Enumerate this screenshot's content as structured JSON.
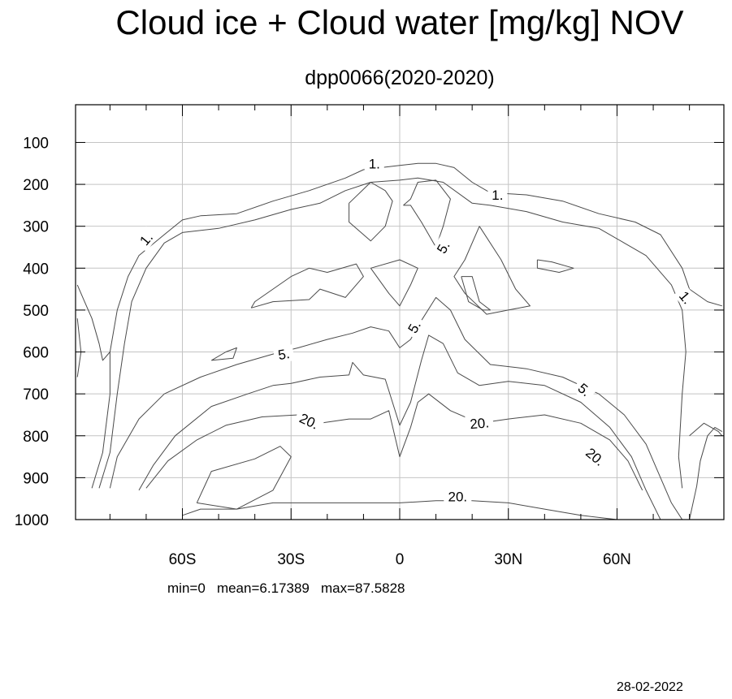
{
  "chart_data": {
    "type": "contour",
    "title": "Cloud ice + Cloud water [mg/kg] NOV",
    "subtitle": "dpp0066(2020-2020)",
    "x_ticks": [
      {
        "value": -60,
        "label": "60S"
      },
      {
        "value": -30,
        "label": "30S"
      },
      {
        "value": 0,
        "label": "0"
      },
      {
        "value": 30,
        "label": "30N"
      },
      {
        "value": 60,
        "label": "60N"
      }
    ],
    "y_ticks": [
      {
        "value": 100,
        "label": "100"
      },
      {
        "value": 200,
        "label": "200"
      },
      {
        "value": 300,
        "label": "300"
      },
      {
        "value": 400,
        "label": "400"
      },
      {
        "value": 500,
        "label": "500"
      },
      {
        "value": 600,
        "label": "600"
      },
      {
        "value": 700,
        "label": "700"
      },
      {
        "value": 800,
        "label": "800"
      },
      {
        "value": 900,
        "label": "900"
      },
      {
        "value": 1000,
        "label": "1000"
      }
    ],
    "xlim": [
      -89.5,
      89.5
    ],
    "ylim": [
      1000,
      10
    ],
    "grid": true,
    "contour_levels": [
      1,
      5,
      20
    ],
    "contours": [
      {
        "level": 1,
        "points": [
          [
            -85,
            925
          ],
          [
            -82,
            840
          ],
          [
            -80,
            700
          ],
          [
            -80,
            600
          ],
          [
            -78,
            500
          ],
          [
            -75,
            420
          ],
          [
            -72,
            370
          ],
          [
            -65,
            320
          ],
          [
            -60,
            285
          ],
          [
            -55,
            275
          ],
          [
            -45,
            270
          ],
          [
            -35,
            240
          ],
          [
            -25,
            215
          ],
          [
            -15,
            185
          ],
          [
            -10,
            165
          ],
          [
            -5,
            160
          ],
          [
            0,
            155
          ],
          [
            5,
            150
          ],
          [
            10,
            150
          ],
          [
            15,
            160
          ],
          [
            20,
            195
          ],
          [
            25,
            220
          ],
          [
            35,
            225
          ],
          [
            45,
            240
          ],
          [
            55,
            270
          ],
          [
            65,
            290
          ],
          [
            72,
            320
          ],
          [
            78,
            400
          ],
          [
            80,
            450
          ],
          [
            85,
            480
          ],
          [
            89,
            490
          ]
        ]
      },
      {
        "level": 1,
        "points": [
          [
            -83,
            925
          ],
          [
            -80,
            840
          ],
          [
            -78,
            700
          ],
          [
            -76,
            580
          ],
          [
            -74,
            480
          ],
          [
            -70,
            400
          ],
          [
            -65,
            340
          ],
          [
            -60,
            315
          ],
          [
            -50,
            305
          ],
          [
            -40,
            285
          ],
          [
            -30,
            260
          ],
          [
            -22,
            245
          ],
          [
            -15,
            215
          ],
          [
            -8,
            195
          ],
          [
            0,
            190
          ],
          [
            5,
            185
          ],
          [
            12,
            195
          ],
          [
            20,
            245
          ],
          [
            25,
            250
          ],
          [
            35,
            265
          ],
          [
            45,
            290
          ],
          [
            55,
            305
          ],
          [
            62,
            340
          ],
          [
            68,
            370
          ],
          [
            75,
            440
          ],
          [
            78,
            500
          ],
          [
            79,
            600
          ],
          [
            78,
            700
          ],
          [
            77,
            850
          ],
          [
            78,
            925
          ]
        ]
      },
      {
        "level": 5,
        "points": [
          [
            -80,
            925
          ],
          [
            -78,
            850
          ],
          [
            -72,
            760
          ],
          [
            -65,
            700
          ],
          [
            -55,
            660
          ],
          [
            -45,
            630
          ],
          [
            -35,
            605
          ],
          [
            -28,
            590
          ],
          [
            -20,
            570
          ],
          [
            -13,
            555
          ],
          [
            -8,
            540
          ],
          [
            -3,
            550
          ],
          [
            0,
            590
          ],
          [
            3,
            570
          ],
          [
            6,
            525
          ],
          [
            10,
            470
          ],
          [
            14,
            500
          ],
          [
            18,
            570
          ],
          [
            25,
            630
          ],
          [
            35,
            640
          ],
          [
            45,
            660
          ],
          [
            55,
            700
          ],
          [
            62,
            750
          ],
          [
            68,
            820
          ],
          [
            72,
            900
          ],
          [
            75,
            960
          ],
          [
            78,
            1000
          ]
        ]
      },
      {
        "level": 5,
        "points": [
          [
            -72,
            930
          ],
          [
            -68,
            870
          ],
          [
            -62,
            800
          ],
          [
            -52,
            730
          ],
          [
            -42,
            700
          ],
          [
            -35,
            680
          ],
          [
            -30,
            675
          ],
          [
            -22,
            660
          ],
          [
            -14,
            655
          ],
          [
            -13,
            625
          ],
          [
            -10,
            655
          ],
          [
            -4,
            665
          ],
          [
            0,
            775
          ],
          [
            3,
            720
          ],
          [
            6,
            620
          ],
          [
            8,
            560
          ],
          [
            12,
            580
          ],
          [
            16,
            650
          ],
          [
            22,
            680
          ],
          [
            30,
            670
          ],
          [
            40,
            680
          ],
          [
            50,
            720
          ],
          [
            58,
            780
          ],
          [
            64,
            850
          ],
          [
            68,
            930
          ],
          [
            72,
            1000
          ]
        ]
      },
      {
        "level": 20,
        "points": [
          [
            -70,
            925
          ],
          [
            -64,
            860
          ],
          [
            -56,
            810
          ],
          [
            -48,
            775
          ],
          [
            -38,
            755
          ],
          [
            -28,
            750
          ],
          [
            -22,
            770
          ],
          [
            -14,
            760
          ],
          [
            -8,
            760
          ],
          [
            -3,
            740
          ],
          [
            0,
            850
          ],
          [
            3,
            780
          ],
          [
            5,
            720
          ],
          [
            8,
            700
          ],
          [
            14,
            740
          ],
          [
            22,
            770
          ],
          [
            30,
            760
          ],
          [
            40,
            750
          ],
          [
            50,
            770
          ],
          [
            58,
            810
          ],
          [
            63,
            860
          ],
          [
            67,
            930
          ]
        ]
      },
      {
        "level": 20,
        "points": [
          [
            -60,
            990
          ],
          [
            -55,
            975
          ],
          [
            -45,
            975
          ],
          [
            -35,
            960
          ],
          [
            -20,
            960
          ],
          [
            -10,
            960
          ],
          [
            0,
            960
          ],
          [
            10,
            955
          ],
          [
            20,
            955
          ],
          [
            30,
            960
          ],
          [
            40,
            975
          ],
          [
            50,
            990
          ],
          [
            60,
            1000
          ]
        ]
      },
      {
        "level": 20,
        "points": [
          [
            -56,
            960
          ],
          [
            -52,
            885
          ],
          [
            -40,
            855
          ],
          [
            -33,
            825
          ],
          [
            -30,
            850
          ],
          [
            -35,
            930
          ],
          [
            -45,
            975
          ],
          [
            -56,
            960
          ]
        ]
      },
      {
        "level": 5,
        "points": [
          [
            -14,
            245
          ],
          [
            -8,
            195
          ],
          [
            -4,
            215
          ],
          [
            -2,
            240
          ],
          [
            -4,
            300
          ],
          [
            -8,
            335
          ],
          [
            -14,
            290
          ],
          [
            -14,
            245
          ]
        ]
      },
      {
        "level": 5,
        "points": [
          [
            1,
            250
          ],
          [
            3,
            235
          ],
          [
            5,
            195
          ],
          [
            10,
            190
          ],
          [
            14,
            235
          ],
          [
            12,
            300
          ],
          [
            10,
            350
          ],
          [
            6,
            290
          ],
          [
            3,
            250
          ],
          [
            1,
            250
          ]
        ]
      },
      {
        "level": 5,
        "points": [
          [
            22,
            300
          ],
          [
            28,
            380
          ],
          [
            32,
            450
          ],
          [
            36,
            490
          ],
          [
            30,
            500
          ],
          [
            24,
            510
          ],
          [
            18,
            460
          ],
          [
            15,
            420
          ],
          [
            18,
            380
          ],
          [
            22,
            300
          ]
        ]
      },
      {
        "level": 5,
        "points": [
          [
            17,
            420
          ],
          [
            20,
            420
          ],
          [
            22,
            480
          ],
          [
            25,
            500
          ],
          [
            23,
            500
          ],
          [
            19,
            480
          ],
          [
            17,
            420
          ]
        ]
      },
      {
        "level": 5,
        "points": [
          [
            -41,
            495
          ],
          [
            -35,
            480
          ],
          [
            -25,
            475
          ],
          [
            -22,
            450
          ],
          [
            -15,
            470
          ],
          [
            -10,
            420
          ],
          [
            -12,
            390
          ],
          [
            -20,
            410
          ],
          [
            -25,
            400
          ],
          [
            -30,
            420
          ],
          [
            -40,
            480
          ],
          [
            -41,
            495
          ]
        ]
      },
      {
        "level": 5,
        "points": [
          [
            -8,
            400
          ],
          [
            0,
            380
          ],
          [
            5,
            400
          ],
          [
            3,
            440
          ],
          [
            0,
            490
          ],
          [
            -3,
            460
          ],
          [
            -8,
            400
          ]
        ]
      },
      {
        "level": 5,
        "points": [
          [
            38,
            380
          ],
          [
            42,
            385
          ],
          [
            48,
            400
          ],
          [
            44,
            410
          ],
          [
            38,
            400
          ],
          [
            38,
            380
          ]
        ]
      },
      {
        "level": 1,
        "points": [
          [
            -89,
            440
          ],
          [
            -87,
            480
          ],
          [
            -85,
            520
          ],
          [
            -83,
            580
          ],
          [
            -82,
            620
          ],
          [
            -80,
            600
          ]
        ]
      },
      {
        "level": 1,
        "points": [
          [
            -89,
            520
          ],
          [
            -88,
            600
          ],
          [
            -89,
            660
          ]
        ]
      },
      {
        "level": 5,
        "points": [
          [
            -52,
            620
          ],
          [
            -48,
            600
          ],
          [
            -45,
            590
          ],
          [
            -46,
            615
          ],
          [
            -52,
            620
          ]
        ]
      },
      {
        "level": 5,
        "points": [
          [
            80,
            1000
          ],
          [
            82,
            920
          ],
          [
            83,
            860
          ],
          [
            85,
            800
          ],
          [
            87,
            780
          ],
          [
            89,
            790
          ]
        ]
      },
      {
        "level": 5,
        "points": [
          [
            80,
            800
          ],
          [
            84,
            770
          ],
          [
            88,
            790
          ],
          [
            89,
            800
          ]
        ]
      }
    ],
    "contour_labels": [
      {
        "text": "1.",
        "x": -7,
        "y": 150,
        "angle": 0
      },
      {
        "text": "1.",
        "x": 27,
        "y": 225,
        "angle": 0
      },
      {
        "text": "1.",
        "x": -70,
        "y": 330,
        "angle": -50
      },
      {
        "text": "1.",
        "x": 79,
        "y": 470,
        "angle": 50
      },
      {
        "text": "5.",
        "x": 12,
        "y": 350,
        "angle": -60
      },
      {
        "text": "5.",
        "x": 4,
        "y": 540,
        "angle": -60
      },
      {
        "text": "5.",
        "x": -32,
        "y": 605,
        "angle": -10
      },
      {
        "text": "5.",
        "x": 51,
        "y": 690,
        "angle": 40
      },
      {
        "text": "20.",
        "x": -25,
        "y": 765,
        "angle": 25
      },
      {
        "text": "20.",
        "x": 22,
        "y": 770,
        "angle": -5
      },
      {
        "text": "20.",
        "x": 54,
        "y": 850,
        "angle": 40
      },
      {
        "text": "20.",
        "x": 16,
        "y": 945,
        "angle": 0
      }
    ]
  },
  "stats": "min=0   mean=6.17389   max=87.5828",
  "date": "28-02-2022",
  "colors": {
    "line": "#4a4a4a",
    "grid": "#c4c4c4",
    "frame": "#000000",
    "text": "#000000"
  }
}
